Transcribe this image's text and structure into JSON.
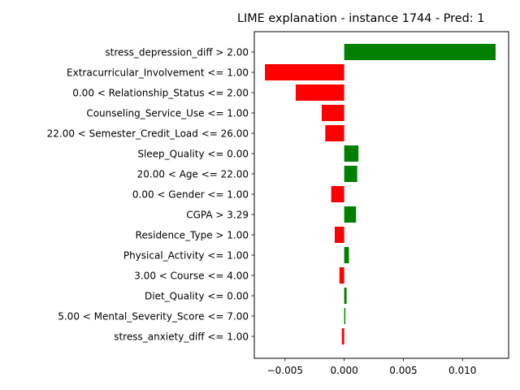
{
  "chart_data": {
    "type": "bar",
    "orientation": "horizontal",
    "title": "LIME explanation - instance 1744 - Pred: 1",
    "xlabel": "",
    "ylabel": "",
    "xlim": [
      -0.0076,
      0.0139
    ],
    "xticks": [
      {
        "value": -0.005,
        "label": "−0.005"
      },
      {
        "value": 0.0,
        "label": "0.000"
      },
      {
        "value": 0.005,
        "label": "0.005"
      },
      {
        "value": 0.01,
        "label": "0.010"
      }
    ],
    "grid": false,
    "legend": "none",
    "colors": {
      "positive": "#008000",
      "negative": "#ff0000"
    },
    "categories": [
      "stress_depression_diff > 2.00",
      "Extracurricular_Involvement <= 1.00",
      "0.00 < Relationship_Status <= 2.00",
      "Counseling_Service_Use <= 1.00",
      "22.00 < Semester_Credit_Load <= 26.00",
      "Sleep_Quality <= 0.00",
      "20.00 < Age <= 22.00",
      "0.00 < Gender <= 1.00",
      "CGPA > 3.29",
      "Residence_Type > 1.00",
      "Physical_Activity <= 1.00",
      "3.00 < Course <= 4.00",
      "Diet_Quality <= 0.00",
      "5.00 < Mental_Severity_Score <= 7.00",
      "stress_anxiety_diff <= 1.00"
    ],
    "values": [
      0.0128,
      -0.0067,
      -0.0041,
      -0.0019,
      -0.0016,
      0.0012,
      0.0011,
      -0.0011,
      0.001,
      -0.0008,
      0.0004,
      -0.0004,
      0.0002,
      0.0001,
      -0.0002
    ]
  }
}
